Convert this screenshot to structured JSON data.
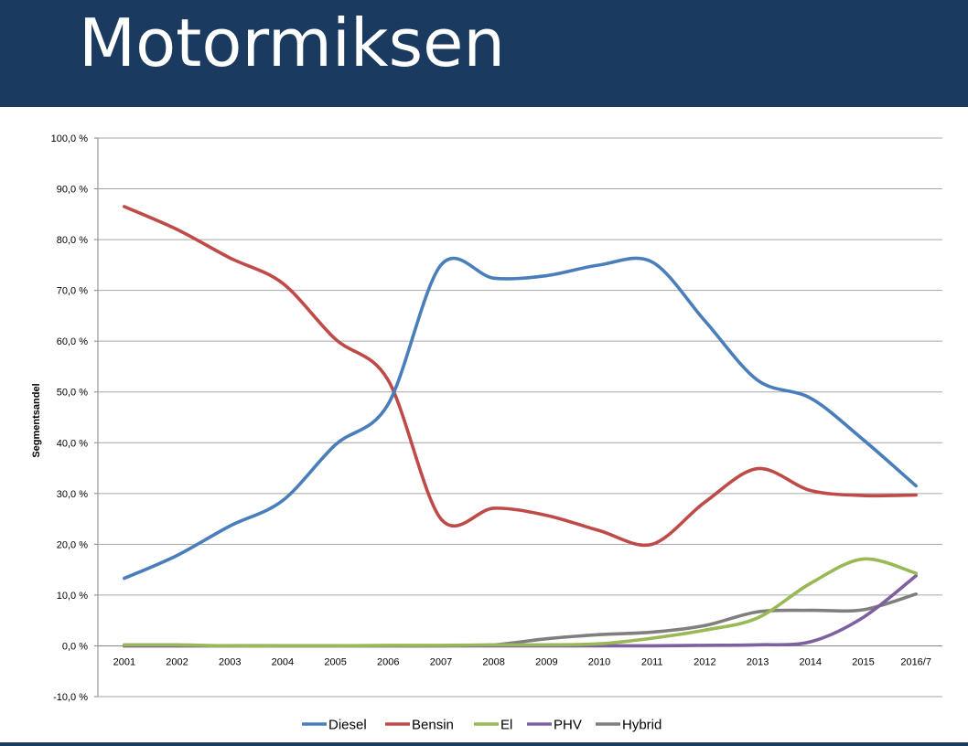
{
  "page": {
    "title": "Motormiksen"
  },
  "chart_data": {
    "type": "line",
    "title": "",
    "xlabel": "",
    "ylabel": "Segmentsandel",
    "ylim": [
      -10,
      100
    ],
    "yticks": [
      -10,
      0,
      10,
      20,
      30,
      40,
      50,
      60,
      70,
      80,
      90,
      100
    ],
    "ytick_labels": [
      "-10,0 %",
      "0,0 %",
      "10,0 %",
      "20,0 %",
      "30,0 %",
      "40,0 %",
      "50,0 %",
      "60,0 %",
      "70,0 %",
      "80,0 %",
      "90,0 %",
      "100,0 %"
    ],
    "categories": [
      "2001",
      "2002",
      "2003",
      "2004",
      "2005",
      "2006",
      "2007",
      "2008",
      "2009",
      "2010",
      "2011",
      "2012",
      "2013",
      "2014",
      "2015",
      "2016/7"
    ],
    "grid": true,
    "legend_position": "bottom",
    "series": [
      {
        "name": "Diesel",
        "color": "#4a7ebb",
        "values": [
          13.3,
          17.8,
          23.6,
          28.6,
          39.6,
          47.6,
          75.0,
          72.4,
          72.9,
          75.0,
          75.6,
          64.0,
          52.3,
          48.8,
          40.6,
          31.5
        ]
      },
      {
        "name": "Bensin",
        "color": "#be4b48",
        "values": [
          86.5,
          82.0,
          76.4,
          71.4,
          60.4,
          52.3,
          25.0,
          27.1,
          25.7,
          22.7,
          20.0,
          28.3,
          34.9,
          30.6,
          29.6,
          29.7
        ]
      },
      {
        "name": "El",
        "color": "#98b954",
        "values": [
          0.2,
          0.2,
          0.0,
          0.0,
          0.0,
          0.1,
          0.1,
          0.2,
          0.2,
          0.4,
          1.5,
          3.1,
          5.5,
          12.3,
          17.1,
          14.3
        ]
      },
      {
        "name": "PHV",
        "color": "#7d60a0",
        "values": [
          0.0,
          0.0,
          0.0,
          0.0,
          0.0,
          0.0,
          0.0,
          0.0,
          0.0,
          0.0,
          0.0,
          0.1,
          0.2,
          0.8,
          5.6,
          13.8
        ]
      },
      {
        "name": "Hybrid",
        "color": "#7f7f7f",
        "values": [
          0.0,
          0.0,
          0.0,
          0.0,
          0.0,
          0.0,
          0.0,
          0.2,
          1.4,
          2.2,
          2.7,
          4.0,
          6.7,
          7.0,
          7.1,
          10.2
        ]
      }
    ]
  }
}
